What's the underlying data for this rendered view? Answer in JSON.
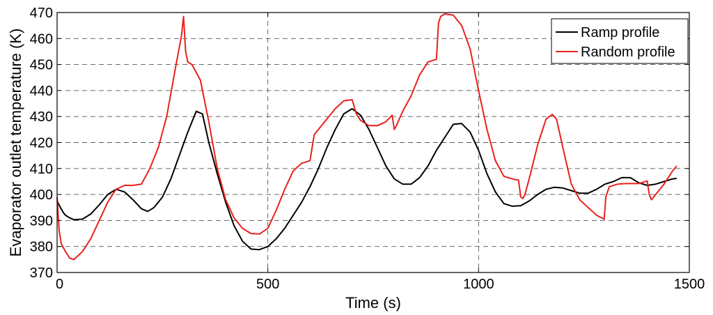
{
  "chart_data": {
    "type": "line",
    "title": "",
    "xlabel": "Time (s)",
    "ylabel": "Evaporator outlet temperature (K)",
    "xlim": [
      0,
      1500
    ],
    "ylim": [
      370,
      470
    ],
    "xticks": [
      0,
      500,
      1000,
      1500
    ],
    "yticks": [
      370,
      380,
      390,
      400,
      410,
      420,
      430,
      440,
      450,
      460,
      470
    ],
    "grid": true,
    "legend_position": "top-right",
    "series": [
      {
        "name": "Ramp profile",
        "color": "#000000",
        "x": [
          0,
          8,
          15,
          20,
          25,
          30,
          40,
          60,
          80,
          100,
          120,
          140,
          160,
          180,
          200,
          215,
          230,
          250,
          270,
          290,
          310,
          330,
          345,
          360,
          380,
          400,
          420,
          440,
          460,
          480,
          500,
          520,
          540,
          560,
          580,
          600,
          620,
          640,
          660,
          680,
          700,
          720,
          740,
          760,
          780,
          800,
          820,
          840,
          860,
          880,
          900,
          920,
          940,
          960,
          980,
          1000,
          1020,
          1040,
          1060,
          1080,
          1100,
          1120,
          1140,
          1160,
          1180,
          1200,
          1220,
          1240,
          1260,
          1280,
          1300,
          1320,
          1340,
          1360,
          1380,
          1400,
          1420,
          1440,
          1460,
          1470
        ],
        "y": [
          397.5,
          395,
          393,
          392,
          391.5,
          391,
          390.3,
          390.5,
          392.5,
          396,
          400,
          402,
          401,
          398,
          394.5,
          393.5,
          395,
          399,
          406,
          415,
          424,
          432,
          431,
          420,
          408,
          397,
          388,
          382,
          379,
          378.8,
          380,
          383,
          387,
          392,
          397,
          403,
          410,
          418,
          425,
          431,
          433,
          430.5,
          425,
          418,
          411,
          406,
          404,
          404,
          406.5,
          411,
          417,
          422,
          427,
          427.3,
          424,
          417,
          408,
          401,
          396.5,
          395.5,
          395.7,
          397.5,
          400,
          402,
          402.8,
          402.5,
          401.5,
          400.5,
          400.5,
          402,
          404,
          405,
          406.5,
          406.5,
          404.5,
          403.5,
          404,
          405,
          406,
          406.2
        ]
      },
      {
        "name": "Random profile",
        "color": "#e8201c",
        "x": [
          0,
          5,
          10,
          20,
          30,
          40,
          60,
          80,
          100,
          120,
          140,
          160,
          180,
          200,
          220,
          240,
          260,
          280,
          295,
          300,
          305,
          310,
          320,
          340,
          360,
          380,
          400,
          420,
          440,
          460,
          480,
          500,
          520,
          540,
          560,
          580,
          600,
          610,
          620,
          640,
          660,
          680,
          700,
          710,
          720,
          740,
          760,
          780,
          795,
          800,
          805,
          820,
          840,
          860,
          880,
          900,
          905,
          910,
          920,
          940,
          960,
          980,
          1000,
          1020,
          1040,
          1060,
          1080,
          1095,
          1100,
          1105,
          1110,
          1120,
          1140,
          1160,
          1175,
          1185,
          1200,
          1220,
          1240,
          1260,
          1280,
          1298,
          1302,
          1310,
          1330,
          1350,
          1380,
          1400,
          1405,
          1410,
          1420,
          1440,
          1460,
          1470
        ],
        "y": [
          399,
          386,
          381,
          378,
          375.5,
          375,
          378,
          383,
          390,
          397,
          402,
          403.5,
          403.5,
          404,
          410,
          418,
          430,
          448,
          461,
          468.5,
          455,
          451,
          450,
          444,
          428,
          410,
          398,
          391,
          387,
          385,
          384.8,
          387,
          394,
          402,
          409,
          412,
          413,
          423,
          425,
          429,
          433,
          436,
          436.5,
          431,
          428.5,
          426.5,
          426.5,
          428,
          430.5,
          425,
          426.5,
          432,
          438,
          446,
          451,
          452,
          466,
          468.5,
          469.5,
          469,
          465,
          456,
          440,
          425,
          413,
          407,
          406,
          405.5,
          399,
          398.5,
          400,
          406,
          419,
          429,
          430.8,
          429,
          418,
          404,
          398,
          395,
          392,
          390.5,
          399,
          403,
          404,
          404.2,
          404.2,
          405.2,
          400,
          398,
          400,
          404,
          409,
          411
        ]
      }
    ]
  }
}
